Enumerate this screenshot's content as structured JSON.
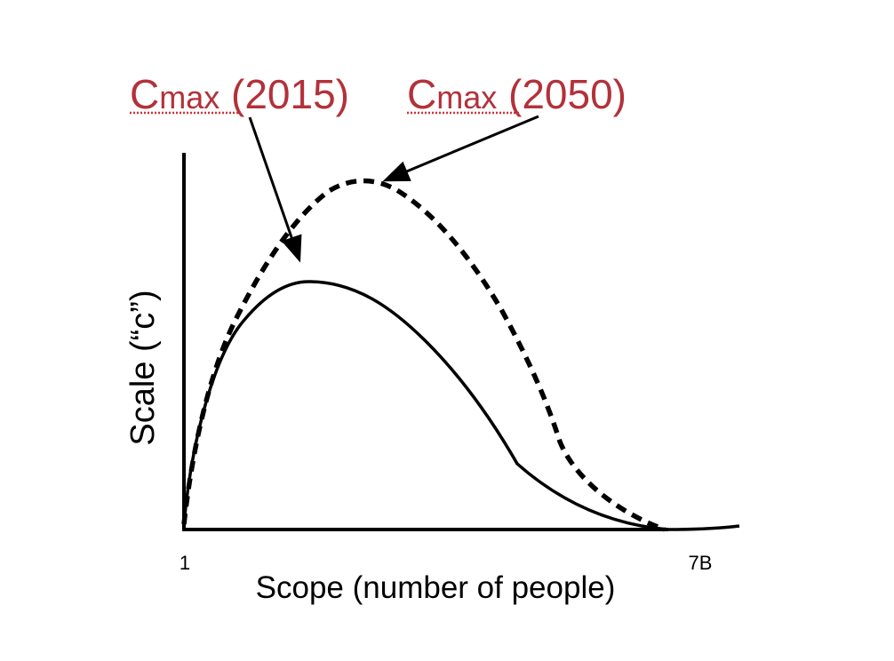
{
  "annotations": {
    "cmax_2015": {
      "letter": "C",
      "sub": "max",
      "year": " (2015)"
    },
    "cmax_2050": {
      "letter": "C",
      "sub": "max",
      "year": " (2050)"
    }
  },
  "axes": {
    "x_label": "Scope (number of people)",
    "y_label": "Scale (“c”)",
    "x_tick_start": "1",
    "x_tick_end": "7B"
  },
  "colors": {
    "annotation": "#b3313a",
    "curve": "#000000",
    "spellcheck_underline": "#d0303a"
  }
}
